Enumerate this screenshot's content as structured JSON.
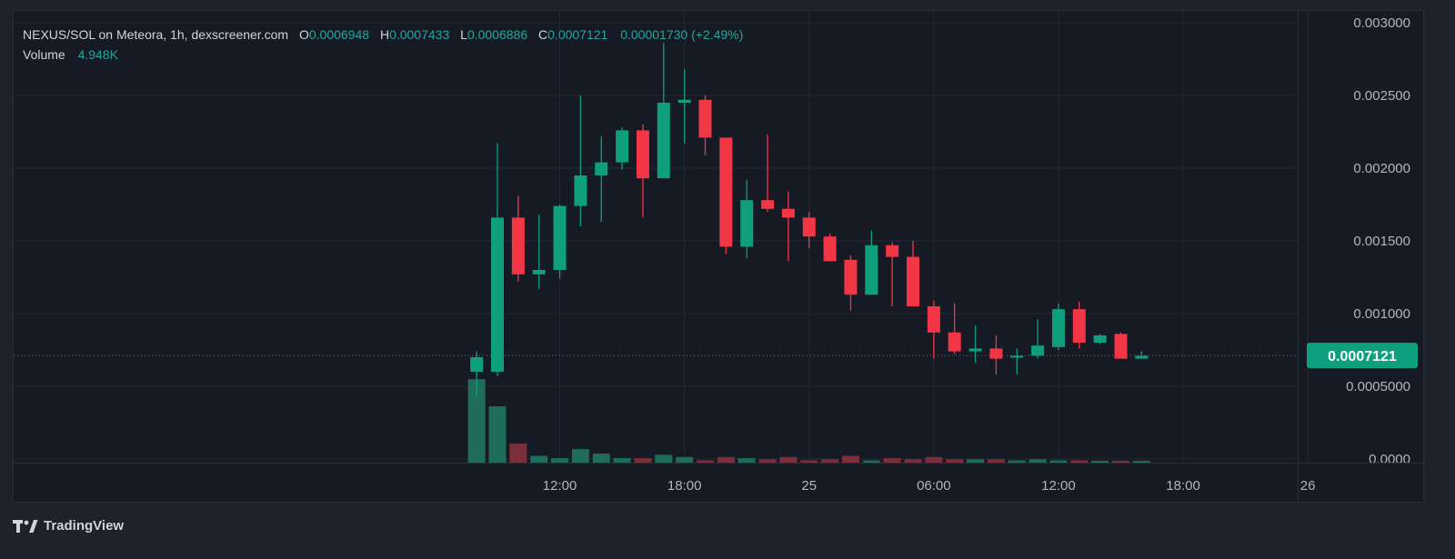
{
  "legend": {
    "symbol": "NEXUS/SOL on Meteora, 1h, dexscreener.com",
    "open_label": "O",
    "open": "0.0006948",
    "high_label": "H",
    "high": "0.0007433",
    "low_label": "L",
    "low": "0.0006886",
    "close_label": "C",
    "close": "0.0007121",
    "change": "0.00001730 (+2.49%)",
    "volume_label": "Volume",
    "volume_value": "4.948K"
  },
  "branding": {
    "logo_text": "TradingView"
  },
  "colors": {
    "up": "#0e9f7f",
    "down": "#f23645",
    "up_volume": "#1f6b5c",
    "down_volume": "#7a2f3b",
    "price_badge": "#0e9f7f"
  },
  "chart_data": {
    "type": "candlestick",
    "interval": "1h",
    "y_axis": {
      "ticks": [
        "0.003000",
        "0.002500",
        "0.002000",
        "0.001500",
        "0.001000",
        "0.0005000",
        "0.0000"
      ],
      "range": [
        0,
        0.003
      ]
    },
    "x_axis": {
      "ticks": [
        {
          "label": "12:00",
          "hour": 12
        },
        {
          "label": "18:00",
          "hour": 18
        },
        {
          "label": "25",
          "hour": 24
        },
        {
          "label": "06:00",
          "hour": 30
        },
        {
          "label": "12:00",
          "hour": 36
        },
        {
          "label": "18:00",
          "hour": 42
        },
        {
          "label": "26",
          "hour": 48
        }
      ]
    },
    "current_price": "0.0007121",
    "candles": [
      {
        "hour": 8,
        "o": 0.0006,
        "h": 0.00074,
        "l": 0.00043,
        "c": 0.0007,
        "v": 0.74
      },
      {
        "hour": 9,
        "o": 0.0006,
        "h": 0.00217,
        "l": 0.00057,
        "c": 0.00166,
        "v": 0.5
      },
      {
        "hour": 10,
        "o": 0.00166,
        "h": 0.00181,
        "l": 0.00122,
        "c": 0.00127,
        "v": 0.17
      },
      {
        "hour": 11,
        "o": 0.00127,
        "h": 0.00168,
        "l": 0.00117,
        "c": 0.0013,
        "v": 0.06
      },
      {
        "hour": 12,
        "o": 0.0013,
        "h": 0.00175,
        "l": 0.00124,
        "c": 0.00174,
        "v": 0.04
      },
      {
        "hour": 13,
        "o": 0.00174,
        "h": 0.0025,
        "l": 0.0016,
        "c": 0.00195,
        "v": 0.12
      },
      {
        "hour": 14,
        "o": 0.00195,
        "h": 0.00222,
        "l": 0.00163,
        "c": 0.00204,
        "v": 0.08
      },
      {
        "hour": 15,
        "o": 0.00204,
        "h": 0.00228,
        "l": 0.00199,
        "c": 0.00226,
        "v": 0.04
      },
      {
        "hour": 16,
        "o": 0.00226,
        "h": 0.0023,
        "l": 0.00166,
        "c": 0.00193,
        "v": 0.04
      },
      {
        "hour": 17,
        "o": 0.00193,
        "h": 0.00286,
        "l": 0.00193,
        "c": 0.00245,
        "v": 0.07
      },
      {
        "hour": 18,
        "o": 0.00245,
        "h": 0.00268,
        "l": 0.00217,
        "c": 0.00247,
        "v": 0.05
      },
      {
        "hour": 19,
        "o": 0.00247,
        "h": 0.0025,
        "l": 0.00209,
        "c": 0.00221,
        "v": 0.02
      },
      {
        "hour": 20,
        "o": 0.00221,
        "h": 0.00221,
        "l": 0.00141,
        "c": 0.00146,
        "v": 0.05
      },
      {
        "hour": 21,
        "o": 0.00146,
        "h": 0.00192,
        "l": 0.00138,
        "c": 0.00178,
        "v": 0.04
      },
      {
        "hour": 22,
        "o": 0.00178,
        "h": 0.00223,
        "l": 0.0017,
        "c": 0.00172,
        "v": 0.03
      },
      {
        "hour": 23,
        "o": 0.00172,
        "h": 0.00184,
        "l": 0.00136,
        "c": 0.00166,
        "v": 0.05
      },
      {
        "hour": 24,
        "o": 0.00166,
        "h": 0.0017,
        "l": 0.00145,
        "c": 0.00153,
        "v": 0.02
      },
      {
        "hour": 25,
        "o": 0.00153,
        "h": 0.00155,
        "l": 0.00136,
        "c": 0.00136,
        "v": 0.03
      },
      {
        "hour": 26,
        "o": 0.00137,
        "h": 0.0014,
        "l": 0.00102,
        "c": 0.00113,
        "v": 0.06
      },
      {
        "hour": 27,
        "o": 0.00113,
        "h": 0.00157,
        "l": 0.00113,
        "c": 0.00147,
        "v": 0.02
      },
      {
        "hour": 28,
        "o": 0.00147,
        "h": 0.00149,
        "l": 0.00105,
        "c": 0.00139,
        "v": 0.04
      },
      {
        "hour": 29,
        "o": 0.00139,
        "h": 0.0015,
        "l": 0.00105,
        "c": 0.00105,
        "v": 0.03
      },
      {
        "hour": 30,
        "o": 0.00105,
        "h": 0.00109,
        "l": 0.00069,
        "c": 0.00087,
        "v": 0.05
      },
      {
        "hour": 31,
        "o": 0.00087,
        "h": 0.00107,
        "l": 0.00072,
        "c": 0.00074,
        "v": 0.03
      },
      {
        "hour": 32,
        "o": 0.00074,
        "h": 0.00092,
        "l": 0.00066,
        "c": 0.00076,
        "v": 0.03
      },
      {
        "hour": 33,
        "o": 0.00076,
        "h": 0.00085,
        "l": 0.00058,
        "c": 0.00069,
        "v": 0.03
      },
      {
        "hour": 34,
        "o": 0.0007,
        "h": 0.00076,
        "l": 0.00058,
        "c": 0.00071,
        "v": 0.02
      },
      {
        "hour": 35,
        "o": 0.00071,
        "h": 0.00096,
        "l": 0.00069,
        "c": 0.00078,
        "v": 0.03
      },
      {
        "hour": 36,
        "o": 0.00077,
        "h": 0.00107,
        "l": 0.00075,
        "c": 0.00103,
        "v": 0.02
      },
      {
        "hour": 37,
        "o": 0.00103,
        "h": 0.00108,
        "l": 0.00076,
        "c": 0.0008,
        "v": 0.02
      },
      {
        "hour": 38,
        "o": 0.0008,
        "h": 0.00086,
        "l": 0.00079,
        "c": 0.00085,
        "v": 0.01
      },
      {
        "hour": 39,
        "o": 0.00086,
        "h": 0.00087,
        "l": 0.00069,
        "c": 0.00069,
        "v": 0.01
      },
      {
        "hour": 40,
        "o": 0.00069,
        "h": 0.00074,
        "l": 0.00069,
        "c": 0.00071,
        "v": 0.01
      }
    ]
  }
}
